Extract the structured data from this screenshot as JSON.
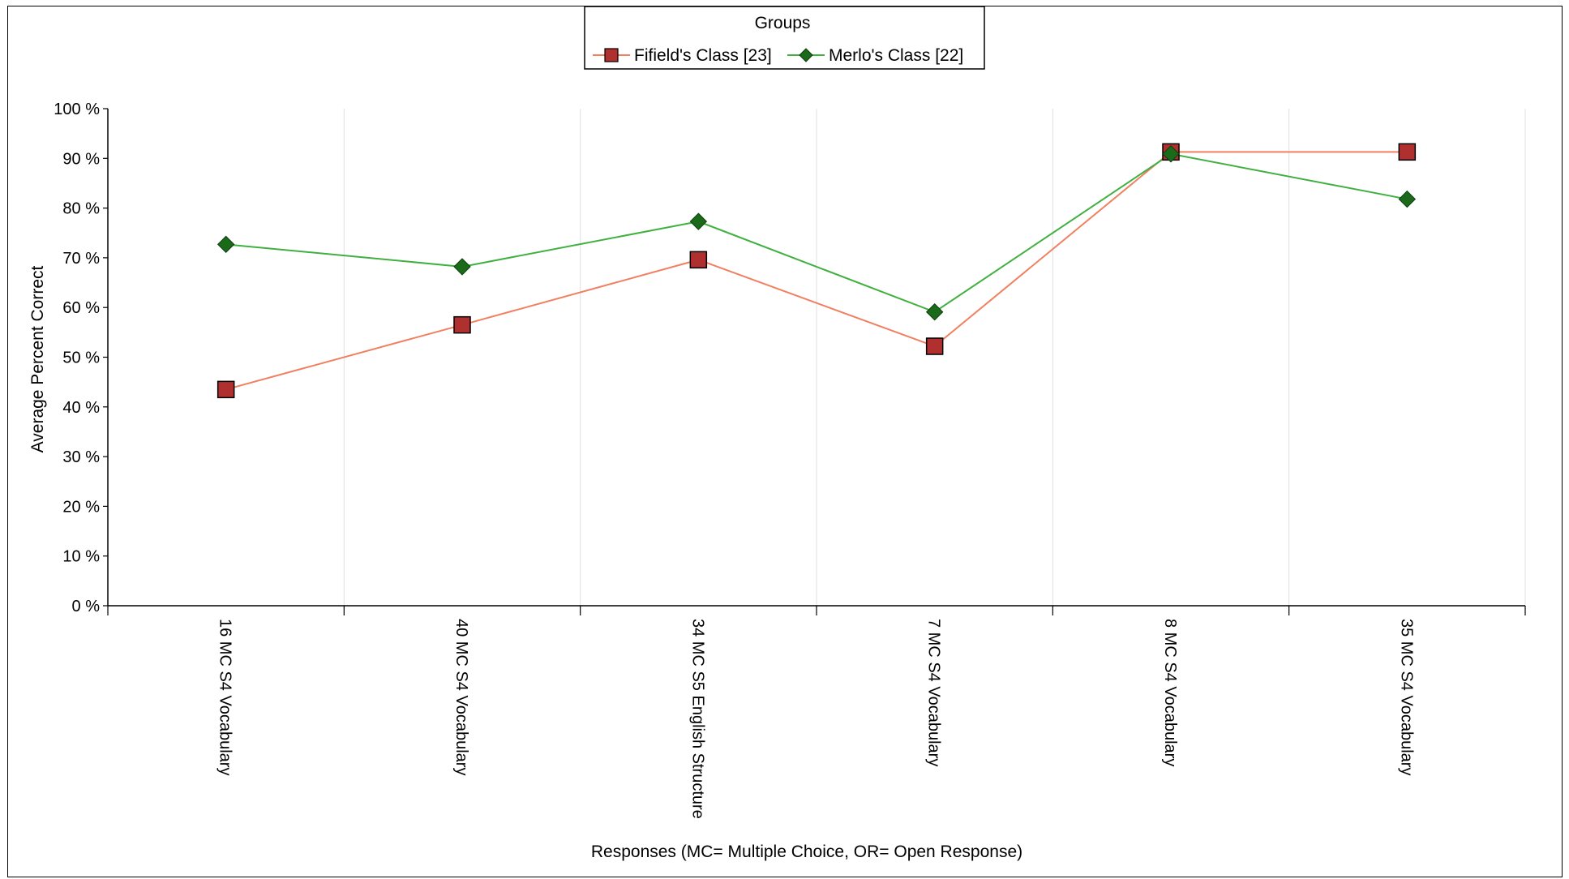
{
  "chart_data": {
    "type": "line",
    "legend": {
      "title": "Groups",
      "placement": "top-center"
    },
    "ylabel": "Average Percent Correct",
    "xlabel": "Responses (MC= Multiple Choice, OR= Open Response)",
    "ylim": [
      0,
      100
    ],
    "y_ticks": [
      "0 %",
      "10 %",
      "20 %",
      "30 %",
      "40 %",
      "50 %",
      "60 %",
      "70 %",
      "80 %",
      "90 %",
      "100 %"
    ],
    "grid": "vertical",
    "categories": [
      "16 MC S4 Vocabulary",
      "40 MC S4 Vocabulary",
      "34 MC S5 English Structure",
      "7 MC S4 Vocabulary",
      "8 MC S4 Vocabulary",
      "35 MC S4 Vocabulary"
    ],
    "series": [
      {
        "name": "Fifield's Class [23]",
        "line_color": "#f08060",
        "marker": "square",
        "marker_color": "#b03030",
        "values": [
          43.5,
          56.5,
          69.6,
          52.2,
          91.3,
          91.3
        ]
      },
      {
        "name": "Merlo's Class [22]",
        "line_color": "#40b040",
        "marker": "diamond",
        "marker_color": "#1a6a1a",
        "values": [
          72.7,
          68.2,
          77.3,
          59.1,
          90.9,
          81.8
        ]
      }
    ]
  }
}
